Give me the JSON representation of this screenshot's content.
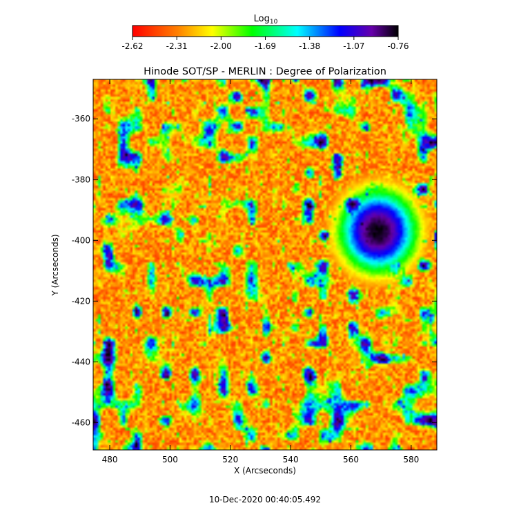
{
  "chart_data": {
    "type": "heatmap",
    "title": "Hinode SOT/SP - MERLIN : Degree of Polarization",
    "xlabel": "X (Arcseconds)",
    "ylabel": "Y (Arcseconds)",
    "xlim": [
      474.5,
      588.5
    ],
    "ylim": [
      -469,
      -347
    ],
    "x_ticks": [
      480,
      500,
      520,
      540,
      560,
      580
    ],
    "y_ticks": [
      -360,
      -380,
      -400,
      -420,
      -440,
      -460
    ],
    "colorbar": {
      "label_base": "Log",
      "label_sub": "10",
      "ticks": [
        "-2.62",
        "-2.31",
        "-2.00",
        "-1.69",
        "-1.38",
        "-1.07",
        "-0.76"
      ],
      "range": [
        -2.62,
        -0.76
      ],
      "colormap": [
        "#ff0000",
        "#ff8000",
        "#ffff00",
        "#00ff00",
        "#00ffff",
        "#0000ff",
        "#6600aa",
        "#000000"
      ]
    },
    "features": {
      "sunspot_center": [
        569,
        -397
      ],
      "sunspot_core_value": -0.85,
      "background_value": -2.5
    },
    "timestamp": "10-Dec-2020 00:40:05.492"
  }
}
